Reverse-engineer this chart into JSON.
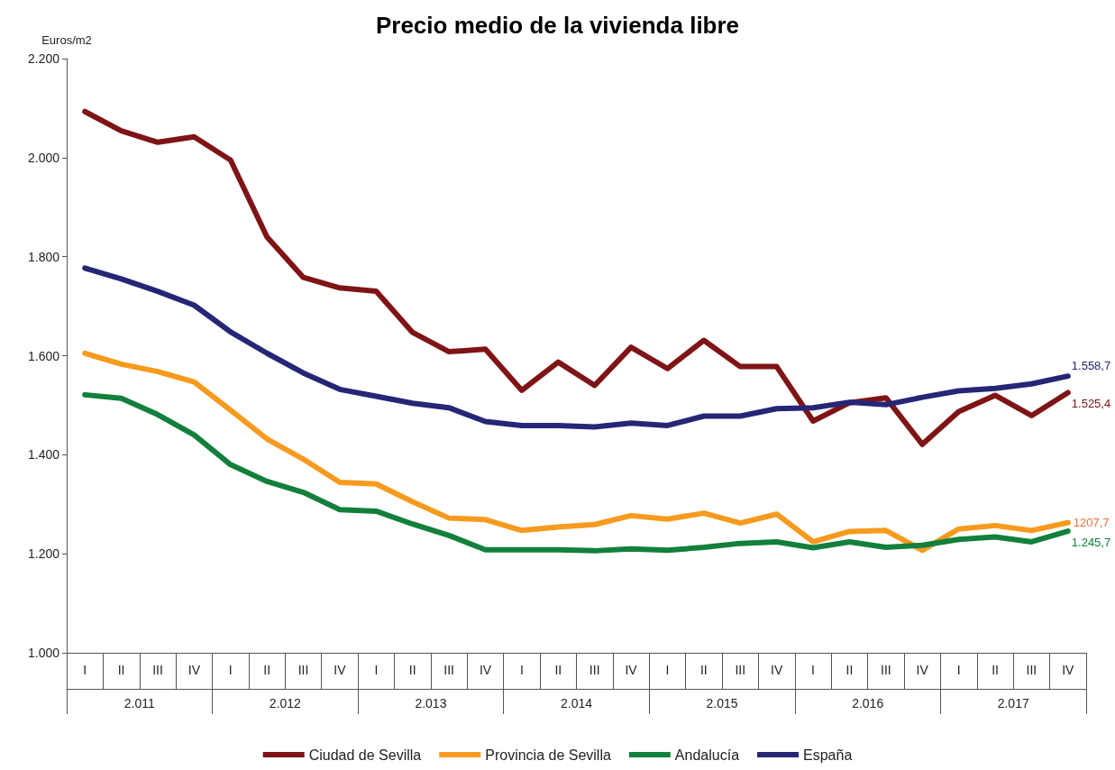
{
  "chart_data": {
    "type": "line",
    "title": "Precio medio de la vivienda libre",
    "ylabel": "Euros/m2",
    "categories": [
      "I",
      "II",
      "III",
      "IV",
      "I",
      "II",
      "III",
      "IV",
      "I",
      "II",
      "III",
      "IV",
      "I",
      "II",
      "III",
      "IV",
      "I",
      "II",
      "III",
      "IV",
      "I",
      "II",
      "III",
      "IV",
      "I",
      "II",
      "III",
      "IV"
    ],
    "annotations": [
      "2.011",
      "2.012",
      "2.013",
      "2.014",
      "2.015",
      "2.016",
      "2.017",
      "1207,7"
    ],
    "series": [
      {
        "name": "Ciudad de Sevilla",
        "color": "#7f1416",
        "values": [
          2093,
          2054,
          2031,
          2042,
          1995,
          1840,
          1758,
          1737,
          1730,
          1647,
          1608,
          1613,
          1530,
          1587,
          1540,
          1617,
          1574,
          1631,
          1578,
          1578,
          1468,
          1505,
          1515,
          1421,
          1487,
          1520,
          1479,
          1525.4
        ],
        "value_labels": [
          null,
          null,
          null,
          null,
          null,
          null,
          null,
          null,
          null,
          null,
          null,
          null,
          null,
          null,
          null,
          null,
          null,
          null,
          null,
          null,
          null,
          null,
          null,
          null,
          null,
          null,
          null,
          "1.525,4"
        ]
      },
      {
        "name": "Provincia de Sevilla",
        "color": "#f79a1e",
        "values": [
          1605,
          1583,
          1568,
          1547,
          1490,
          1432,
          1391,
          1344,
          1341,
          1305,
          1272,
          1269,
          1247,
          1254,
          1259,
          1277,
          1270,
          1282,
          1262,
          1280,
          1224,
          1245,
          1247,
          1207,
          1250,
          1257,
          1247,
          1263
        ]
      },
      {
        "name": "Andalucía",
        "color": "#12803c",
        "values": [
          1521,
          1514,
          1481,
          1440,
          1380,
          1346,
          1324,
          1289,
          1286,
          1260,
          1237,
          1208,
          1208,
          1208,
          1206,
          1210,
          1207,
          1213,
          1221,
          1224,
          1212,
          1224,
          1213,
          1217,
          1229,
          1234,
          1224,
          1245.7
        ],
        "value_labels": [
          null,
          null,
          null,
          null,
          null,
          null,
          null,
          null,
          null,
          null,
          null,
          null,
          null,
          null,
          null,
          null,
          null,
          null,
          null,
          null,
          null,
          null,
          null,
          null,
          null,
          null,
          null,
          "1.245,7"
        ]
      },
      {
        "name": "España",
        "color": "#262677",
        "values": [
          1777,
          1755,
          1730,
          1702,
          1648,
          1605,
          1565,
          1532,
          1518,
          1504,
          1495,
          1467,
          1459,
          1459,
          1456,
          1464,
          1459,
          1478,
          1478,
          1493,
          1495,
          1506,
          1501,
          1516,
          1529,
          1534,
          1543,
          1558.7
        ],
        "value_labels": [
          null,
          null,
          null,
          null,
          null,
          null,
          null,
          null,
          null,
          null,
          null,
          null,
          null,
          null,
          null,
          null,
          null,
          null,
          null,
          null,
          null,
          null,
          null,
          null,
          null,
          null,
          null,
          "1.558,7"
        ]
      }
    ],
    "ylim": [
      1000,
      2200
    ],
    "yticks": [
      {
        "value": 1000,
        "label": "1.000"
      },
      {
        "value": 1200,
        "label": "1.200"
      },
      {
        "value": 1400,
        "label": "1.400"
      },
      {
        "value": 1600,
        "label": "1.600"
      },
      {
        "value": 1800,
        "label": "1.800"
      },
      {
        "value": 2000,
        "label": "2.000"
      },
      {
        "value": 2200,
        "label": "2.200"
      }
    ],
    "grid": false,
    "legend": "bottom",
    "marker": "none",
    "line_style": "solid"
  }
}
